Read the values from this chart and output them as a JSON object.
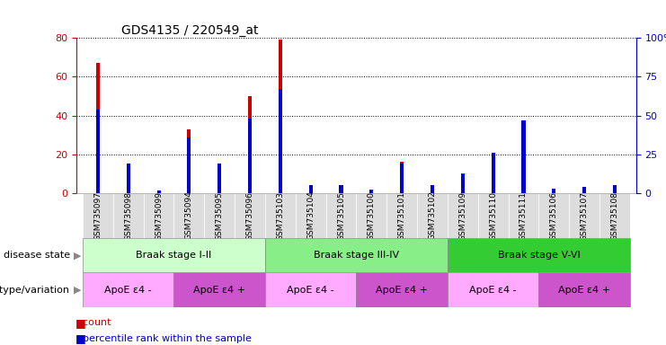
{
  "title": "GDS4135 / 220549_at",
  "samples": [
    "GSM735097",
    "GSM735098",
    "GSM735099",
    "GSM735094",
    "GSM735095",
    "GSM735096",
    "GSM735103",
    "GSM735104",
    "GSM735105",
    "GSM735100",
    "GSM735101",
    "GSM735102",
    "GSM735109",
    "GSM735110",
    "GSM735111",
    "GSM735106",
    "GSM735107",
    "GSM735108"
  ],
  "counts": [
    67,
    6,
    1,
    33,
    11,
    50,
    79,
    3,
    3,
    2,
    16,
    3,
    10,
    21,
    30,
    2,
    3,
    4
  ],
  "percentiles": [
    54,
    19,
    2,
    36,
    19,
    48,
    67,
    5,
    5,
    2,
    19,
    5,
    12,
    26,
    47,
    3,
    4,
    5
  ],
  "ylim_left": [
    0,
    80
  ],
  "ylim_right": [
    0,
    100
  ],
  "yticks_left": [
    0,
    20,
    40,
    60,
    80
  ],
  "yticks_right": [
    0,
    25,
    50,
    75,
    100
  ],
  "disease_stages": [
    {
      "label": "Braak stage I-II",
      "start": 0,
      "end": 6,
      "color": "#ccffcc"
    },
    {
      "label": "Braak stage III-IV",
      "start": 6,
      "end": 12,
      "color": "#88ee88"
    },
    {
      "label": "Braak stage V-VI",
      "start": 12,
      "end": 18,
      "color": "#33cc33"
    }
  ],
  "genotype_groups": [
    {
      "label": "ApoE ε4 -",
      "start": 0,
      "end": 3,
      "color": "#ffaaff"
    },
    {
      "label": "ApoE ε4 +",
      "start": 3,
      "end": 6,
      "color": "#cc55cc"
    },
    {
      "label": "ApoE ε4 -",
      "start": 6,
      "end": 9,
      "color": "#ffaaff"
    },
    {
      "label": "ApoE ε4 +",
      "start": 9,
      "end": 12,
      "color": "#cc55cc"
    },
    {
      "label": "ApoE ε4 -",
      "start": 12,
      "end": 15,
      "color": "#ffaaff"
    },
    {
      "label": "ApoE ε4 +",
      "start": 15,
      "end": 18,
      "color": "#cc55cc"
    }
  ],
  "count_color": "#cc0000",
  "percentile_color": "#0000cc",
  "bar_width": 0.12,
  "pct_bar_width": 0.12,
  "bg_color": "#ffffff",
  "tick_bg": "#dddddd"
}
